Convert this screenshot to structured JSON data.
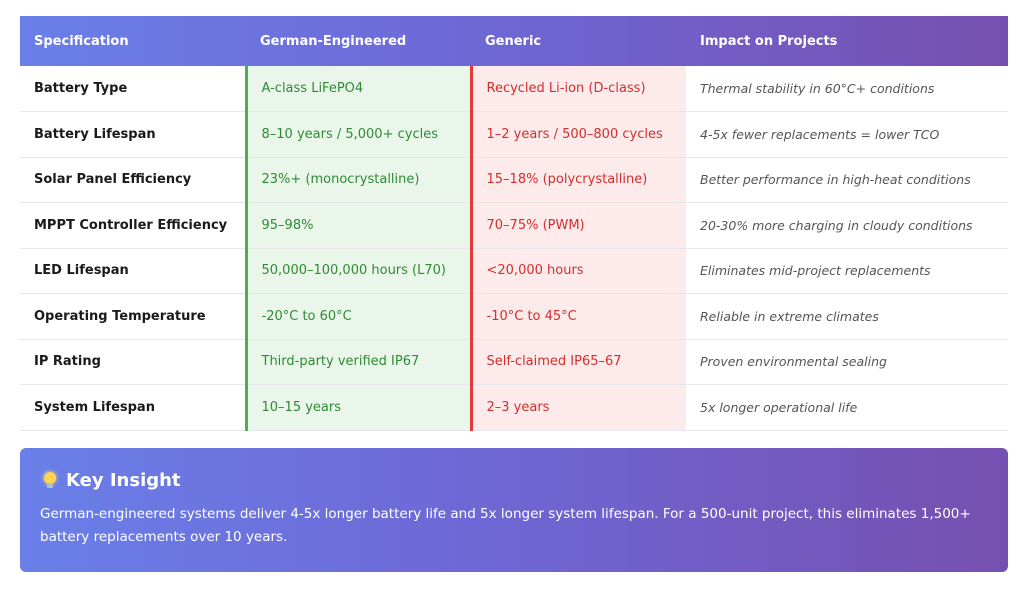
{
  "table": {
    "headers": {
      "specification": "Specification",
      "german": "German-Engineered",
      "generic": "Generic",
      "impact": "Impact on Projects"
    },
    "rows": [
      {
        "spec": "Battery Type",
        "german": "A-class LiFePO4",
        "generic": "Recycled Li-ion (D-class)",
        "impact": "Thermal stability in 60°C+ conditions"
      },
      {
        "spec": "Battery Lifespan",
        "german": "8–10 years / 5,000+ cycles",
        "generic": "1–2 years / 500–800 cycles",
        "impact": "4-5x fewer replacements = lower TCO"
      },
      {
        "spec": "Solar Panel Efficiency",
        "german": "23%+ (monocrystalline)",
        "generic": "15–18% (polycrystalline)",
        "impact": "Better performance in high-heat conditions"
      },
      {
        "spec": "MPPT Controller Efficiency",
        "german": "95–98%",
        "generic": "70–75% (PWM)",
        "impact": "20-30% more charging in cloudy conditions"
      },
      {
        "spec": "LED Lifespan",
        "german": "50,000–100,000 hours (L70)",
        "generic": "<20,000 hours",
        "impact": "Eliminates mid-project replacements"
      },
      {
        "spec": "Operating Temperature",
        "german": "-20°C to 60°C",
        "generic": "-10°C to 45°C",
        "impact": "Reliable in extreme climates"
      },
      {
        "spec": "IP Rating",
        "german": "Third-party verified IP67",
        "generic": "Self-claimed IP65–67",
        "impact": "Proven environmental sealing"
      },
      {
        "spec": "System Lifespan",
        "german": "10–15 years",
        "generic": "2–3 years",
        "impact": "5x longer operational life"
      }
    ]
  },
  "insight": {
    "icon": "lightbulb-icon",
    "title": "Key Insight",
    "body": "German-engineered systems deliver 4-5x longer battery life and 5x longer system lifespan. For a 500-unit project, this eliminates 1,500+ battery replacements over 10 years."
  },
  "colors": {
    "header_gradient_start": "#6a7fe8",
    "header_gradient_end": "#7650b0",
    "german_text": "#2e8b34",
    "german_bg": "#eaf6ea",
    "generic_text": "#d32f2f",
    "generic_bg": "#fdeaea"
  }
}
